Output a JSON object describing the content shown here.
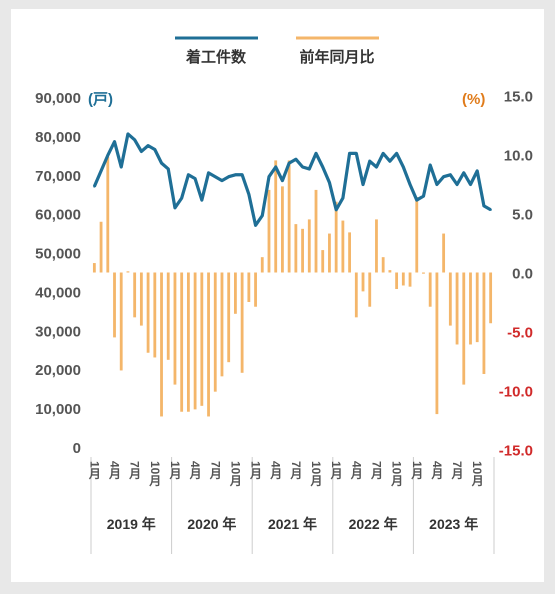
{
  "chart_data": {
    "type": "bar+line",
    "legend": {
      "line_label": "着工件数",
      "bar_label": "前年同月比",
      "line_color": "#1f6f96",
      "bar_color": "#f4b66a"
    },
    "left_axis": {
      "unit": "(戸)",
      "ticks": [
        "90,000",
        "80,000",
        "70,000",
        "60,000",
        "50,000",
        "40,000",
        "30,000",
        "20,000",
        "10,000",
        "0"
      ],
      "ylim": [
        0,
        90000
      ],
      "unit_color": "#1f6f96",
      "tick_color": "#555555"
    },
    "right_axis": {
      "unit": "(%)",
      "ticks": [
        "15.0",
        "10.0",
        "5.0",
        "0.0",
        "-5.0",
        "-10.0",
        "-15.0"
      ],
      "ylim": [
        -15,
        15
      ],
      "unit_color": "#e07b1a",
      "positive_color": "#555555",
      "negative_color": "#d12a2a"
    },
    "month_labels": [
      "1月",
      "4月",
      "7月",
      "10月"
    ],
    "years": [
      "2019 年",
      "2020 年",
      "2021 年",
      "2022 年",
      "2023 年"
    ],
    "line_values": [
      67000,
      71000,
      75000,
      78500,
      72000,
      80500,
      79000,
      76000,
      77500,
      76500,
      73000,
      71500,
      61500,
      64000,
      70000,
      69000,
      63500,
      70500,
      69500,
      68500,
      69500,
      70000,
      70000,
      65000,
      57000,
      59500,
      69500,
      72000,
      68500,
      73000,
      74000,
      72000,
      71500,
      75500,
      72000,
      68000,
      61000,
      64000,
      75500,
      75500,
      67500,
      73500,
      72000,
      75500,
      73500,
      75500,
      72000,
      67500,
      63500,
      64500,
      72500,
      67500,
      69500,
      70000,
      67500,
      70500,
      67500,
      71000,
      62000,
      61000
    ],
    "bar_values": [
      0.8,
      4.3,
      9.8,
      -5.5,
      -8.3,
      0.1,
      -3.8,
      -4.5,
      -6.8,
      -7.2,
      -12.2,
      -7.4,
      -9.5,
      -11.8,
      -11.8,
      -11.6,
      -11.3,
      -12.2,
      -10.1,
      -8.8,
      -7.6,
      -3.5,
      -8.5,
      -2.5,
      -2.9,
      1.3,
      7.0,
      9.5,
      7.3,
      9.5,
      4.1,
      3.7,
      4.5,
      7.0,
      1.9,
      3.3,
      6.0,
      4.4,
      3.4,
      -3.8,
      -1.6,
      -2.9,
      4.5,
      1.3,
      0.2,
      -1.4,
      -1.1,
      -1.2,
      6.4,
      -0.1,
      -2.9,
      -12.0,
      3.3,
      -4.5,
      -6.1,
      -9.5,
      -6.1,
      -5.9,
      -8.6,
      -4.3
    ]
  }
}
